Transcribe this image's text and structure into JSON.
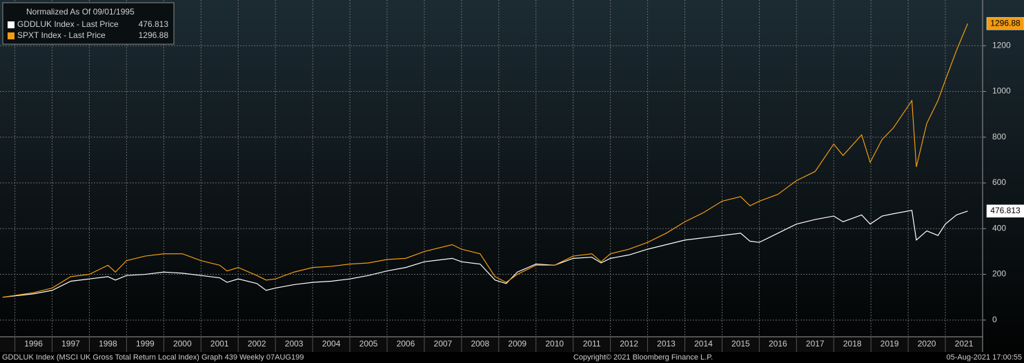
{
  "chart_data": {
    "type": "line",
    "legend_title": "Normalized As Of 09/01/1995",
    "footer_left": "GDDLUK Index (MSCI UK Gross Total Return Local Index) Graph 439  Weekly 07AUG199",
    "footer_center": "Copyright© 2021 Bloomberg Finance L.P.",
    "footer_right": "05-Aug-2021 17:00:55",
    "x": [
      1995.67,
      1996.5,
      1997.0,
      1997.5,
      1998.0,
      1998.5,
      1998.7,
      1999.0,
      1999.5,
      2000.0,
      2000.5,
      2001.0,
      2001.5,
      2001.7,
      2002.0,
      2002.5,
      2002.75,
      2003.0,
      2003.5,
      2004.0,
      2004.5,
      2005.0,
      2005.5,
      2006.0,
      2006.5,
      2007.0,
      2007.75,
      2008.0,
      2008.5,
      2008.9,
      2009.2,
      2009.5,
      2010.0,
      2010.5,
      2011.0,
      2011.5,
      2011.75,
      2012.0,
      2012.5,
      2013.0,
      2013.5,
      2014.0,
      2014.5,
      2015.0,
      2015.5,
      2015.75,
      2016.0,
      2016.5,
      2017.0,
      2017.5,
      2018.0,
      2018.25,
      2018.75,
      2018.98,
      2019.3,
      2019.6,
      2020.1,
      2020.22,
      2020.5,
      2020.8,
      2021.0,
      2021.3,
      2021.6
    ],
    "series": [
      {
        "name": "GDDLUK Index - Last Price",
        "color": "#ffffff",
        "values": [
          100,
          115,
          130,
          170,
          180,
          190,
          175,
          195,
          200,
          210,
          205,
          195,
          185,
          165,
          180,
          160,
          130,
          140,
          155,
          165,
          170,
          180,
          195,
          215,
          230,
          255,
          270,
          255,
          245,
          175,
          160,
          210,
          245,
          240,
          270,
          275,
          250,
          270,
          285,
          310,
          330,
          350,
          360,
          370,
          380,
          345,
          340,
          380,
          420,
          440,
          455,
          430,
          460,
          420,
          455,
          465,
          480,
          350,
          390,
          370,
          420,
          460,
          476.813
        ]
      },
      {
        "name": "SPXT Index - Last Price",
        "color": "#f39c12",
        "values": [
          100,
          120,
          140,
          190,
          200,
          240,
          210,
          260,
          280,
          290,
          290,
          260,
          240,
          215,
          230,
          195,
          175,
          180,
          210,
          230,
          235,
          245,
          250,
          265,
          270,
          300,
          330,
          310,
          290,
          190,
          165,
          200,
          240,
          240,
          280,
          290,
          255,
          290,
          310,
          340,
          380,
          430,
          470,
          520,
          540,
          500,
          520,
          550,
          610,
          650,
          770,
          720,
          810,
          690,
          790,
          840,
          960,
          670,
          860,
          960,
          1050,
          1180,
          1296.88
        ]
      }
    ],
    "xlim": [
      1995.6,
      2022
    ],
    "xticks": [
      1996,
      1997,
      1998,
      1999,
      2000,
      2001,
      2002,
      2003,
      2004,
      2005,
      2006,
      2007,
      2008,
      2009,
      2010,
      2011,
      2012,
      2013,
      2014,
      2015,
      2016,
      2017,
      2018,
      2019,
      2020,
      2021
    ],
    "ylim": [
      -73,
      1400
    ],
    "yticks": [
      0,
      200,
      400,
      600,
      800,
      1000,
      1200
    ],
    "grid": true
  }
}
